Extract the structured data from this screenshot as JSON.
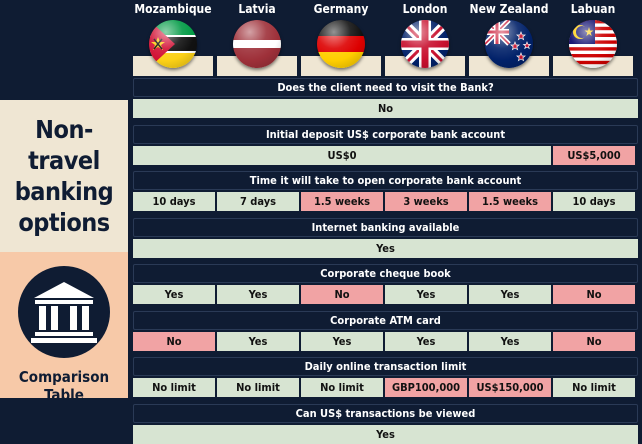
{
  "left_panel": {
    "title_lines": [
      "Non-travel",
      "banking",
      "options"
    ],
    "subtitle": "Comparison Table",
    "icon": "bank-building-icon"
  },
  "countries": [
    {
      "name": "Mozambique",
      "flag": "mozambique-flag-icon"
    },
    {
      "name": "Latvia",
      "flag": "latvia-flag-icon"
    },
    {
      "name": "Germany",
      "flag": "germany-flag-icon"
    },
    {
      "name": "London",
      "flag": "uk-flag-icon"
    },
    {
      "name": "New Zealand",
      "flag": "new-zealand-flag-icon"
    },
    {
      "name": "Labuan",
      "flag": "malaysia-flag-icon"
    }
  ],
  "colors": {
    "navy": "#0f1c33",
    "positive": "#d7e4d2",
    "negative": "#f1a3a4",
    "cream": "#efe6d3",
    "peach": "#f7c9a8"
  },
  "rows": [
    {
      "question": "Does the client need to visit the Bank?",
      "merged": true,
      "cells": [
        {
          "text": "No",
          "span": 6,
          "status": "positive"
        }
      ]
    },
    {
      "question": "Initial deposit US$ corporate bank account",
      "merged": false,
      "cells": [
        {
          "text": "US$0",
          "span": 5,
          "status": "positive"
        },
        {
          "text": "US$5,000",
          "span": 1,
          "status": "negative"
        }
      ]
    },
    {
      "question": "Time it will take to open corporate bank account",
      "merged": false,
      "cells": [
        {
          "text": "10 days",
          "span": 1,
          "status": "positive"
        },
        {
          "text": "7 days",
          "span": 1,
          "status": "positive"
        },
        {
          "text": "1.5 weeks",
          "span": 1,
          "status": "negative"
        },
        {
          "text": "3 weeks",
          "span": 1,
          "status": "negative"
        },
        {
          "text": "1.5 weeks",
          "span": 1,
          "status": "negative"
        },
        {
          "text": "10 days",
          "span": 1,
          "status": "positive"
        }
      ]
    },
    {
      "question": "Internet banking available",
      "merged": true,
      "cells": [
        {
          "text": "Yes",
          "span": 6,
          "status": "positive"
        }
      ]
    },
    {
      "question": "Corporate cheque book",
      "merged": false,
      "cells": [
        {
          "text": "Yes",
          "span": 1,
          "status": "positive"
        },
        {
          "text": "Yes",
          "span": 1,
          "status": "positive"
        },
        {
          "text": "No",
          "span": 1,
          "status": "negative"
        },
        {
          "text": "Yes",
          "span": 1,
          "status": "positive"
        },
        {
          "text": "Yes",
          "span": 1,
          "status": "positive"
        },
        {
          "text": "No",
          "span": 1,
          "status": "negative"
        }
      ]
    },
    {
      "question": "Corporate ATM card",
      "merged": false,
      "cells": [
        {
          "text": "No",
          "span": 1,
          "status": "negative"
        },
        {
          "text": "Yes",
          "span": 1,
          "status": "positive"
        },
        {
          "text": "Yes",
          "span": 1,
          "status": "positive"
        },
        {
          "text": "Yes",
          "span": 1,
          "status": "positive"
        },
        {
          "text": "Yes",
          "span": 1,
          "status": "positive"
        },
        {
          "text": "No",
          "span": 1,
          "status": "negative"
        }
      ]
    },
    {
      "question": "Daily online transaction limit",
      "merged": false,
      "cells": [
        {
          "text": "No limit",
          "span": 1,
          "status": "positive"
        },
        {
          "text": "No limit",
          "span": 1,
          "status": "positive"
        },
        {
          "text": "No limit",
          "span": 1,
          "status": "positive"
        },
        {
          "text": "GBP100,000",
          "span": 1,
          "status": "negative"
        },
        {
          "text": "US$150,000",
          "span": 1,
          "status": "negative"
        },
        {
          "text": "No limit",
          "span": 1,
          "status": "positive"
        }
      ]
    },
    {
      "question": "Can US$ transactions be viewed",
      "merged": true,
      "cells": [
        {
          "text": "Yes",
          "span": 6,
          "status": "positive"
        }
      ]
    }
  ]
}
